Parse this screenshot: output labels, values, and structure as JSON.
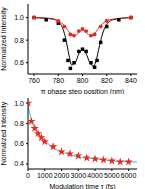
{
  "chart_data": [
    {
      "type": "line",
      "x_label": "π phase step position (nm)",
      "y_label": "Normalized Intensity",
      "xlim": [
        755,
        845
      ],
      "xticks": [
        760,
        780,
        800,
        820,
        840
      ],
      "ylim": [
        0.5,
        1.12
      ],
      "yticks": [
        0.6,
        0.8,
        {
          "value": 1,
          "label": "1.0"
        }
      ],
      "series": [
        {
          "type": "scatter",
          "marker": "square",
          "color": "#000000",
          "x": [
            760,
            770,
            780,
            785,
            788,
            790,
            793,
            797,
            800,
            803,
            807,
            810,
            812,
            815,
            820,
            830,
            840
          ],
          "values": [
            1.0,
            0.98,
            0.95,
            0.8,
            0.62,
            0.55,
            0.6,
            0.7,
            0.72,
            0.7,
            0.6,
            0.56,
            0.62,
            0.78,
            0.92,
            0.98,
            1.0
          ]
        },
        {
          "type": "line",
          "line_style": "solid",
          "color": "#000000",
          "x": [
            760,
            775,
            782,
            786,
            789,
            791,
            794,
            797,
            800,
            803,
            806,
            809,
            811,
            814,
            818,
            825,
            840
          ],
          "values": [
            1.0,
            0.99,
            0.94,
            0.82,
            0.66,
            0.58,
            0.6,
            0.68,
            0.71,
            0.68,
            0.6,
            0.57,
            0.61,
            0.75,
            0.9,
            0.98,
            1.0
          ]
        },
        {
          "type": "scatter",
          "marker": "circle",
          "color": "#e8281e",
          "x": [
            760,
            780,
            785,
            790,
            793,
            797,
            800,
            803,
            807,
            810,
            815,
            820,
            840
          ],
          "values": [
            1.0,
            0.97,
            0.92,
            0.85,
            0.84,
            0.88,
            0.9,
            0.88,
            0.84,
            0.85,
            0.92,
            0.97,
            1.0
          ]
        },
        {
          "type": "line",
          "line_style": "solid",
          "color": "#e8281e",
          "x": [
            760,
            778,
            785,
            790,
            794,
            797,
            800,
            803,
            806,
            810,
            815,
            822,
            840
          ],
          "values": [
            1.0,
            0.98,
            0.93,
            0.86,
            0.84,
            0.87,
            0.89,
            0.87,
            0.84,
            0.86,
            0.93,
            0.98,
            1.0
          ]
        }
      ]
    },
    {
      "type": "line",
      "x_label": "Modulation time τ (fs)",
      "y_label": "Normalized Intensity",
      "xlim": [
        0,
        6500
      ],
      "xticks": [
        0,
        1000,
        2000,
        3000,
        4000,
        5000,
        6000
      ],
      "ylim": [
        0.35,
        1.05
      ],
      "yticks": [
        0.4,
        0.6,
        0.8,
        {
          "value": 1,
          "label": "1.0"
        }
      ],
      "series": [
        {
          "type": "scatter",
          "marker": "star",
          "color": "#e8281e",
          "x": [
            0,
            200,
            400,
            600,
            800,
            1000,
            1500,
            2000,
            2500,
            3000,
            3500,
            4000,
            4500,
            5000,
            5500,
            6000
          ],
          "values": [
            1.0,
            0.82,
            0.75,
            0.7,
            0.66,
            0.62,
            0.57,
            0.52,
            0.5,
            0.48,
            0.46,
            0.45,
            0.44,
            0.43,
            0.42,
            0.42
          ]
        },
        {
          "type": "line",
          "line_style": "solid",
          "color": "#29c4d8",
          "x": [
            0,
            200,
            400,
            700,
            1000,
            1500,
            2000,
            3000,
            4000,
            5000,
            6000,
            6500
          ],
          "values": [
            0.98,
            0.84,
            0.76,
            0.68,
            0.63,
            0.56,
            0.52,
            0.47,
            0.45,
            0.43,
            0.42,
            0.42
          ]
        }
      ]
    }
  ]
}
